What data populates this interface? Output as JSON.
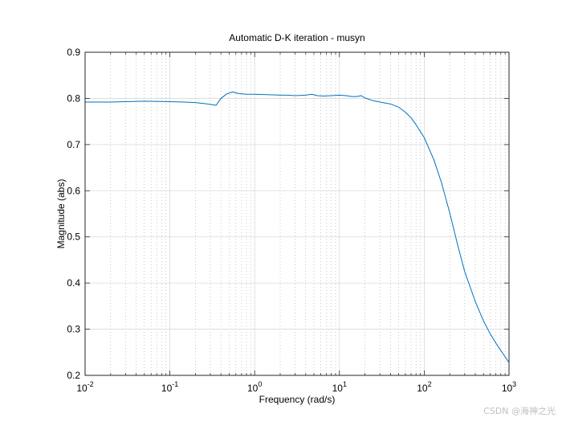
{
  "chart_data": {
    "type": "line",
    "title": "Automatic D-K iteration - musyn",
    "xlabel": "Frequency  (rad/s)",
    "ylabel": "Magnitude (abs)",
    "xscale": "log",
    "xlim": [
      0.01,
      1000
    ],
    "ylim": [
      0.2,
      0.9
    ],
    "grid": true,
    "minor_grid": true,
    "x_ticks": [
      {
        "base": "10",
        "exp": "-2"
      },
      {
        "base": "10",
        "exp": "-1"
      },
      {
        "base": "10",
        "exp": "0"
      },
      {
        "base": "10",
        "exp": "1"
      },
      {
        "base": "10",
        "exp": "2"
      },
      {
        "base": "10",
        "exp": "3"
      }
    ],
    "y_ticks": [
      "0.2",
      "0.3",
      "0.4",
      "0.5",
      "0.6",
      "0.7",
      "0.8",
      "0.9"
    ],
    "line_color": "#0072bd",
    "series": [
      {
        "x": [
          0.01,
          0.02,
          0.03,
          0.05,
          0.1,
          0.15,
          0.2,
          0.25,
          0.3,
          0.35,
          0.4,
          0.47,
          0.55,
          0.63,
          0.8,
          1.0,
          1.5,
          2.0,
          2.5,
          3.0,
          4.0,
          4.7,
          5.5,
          6.5,
          8.0,
          10,
          12,
          14,
          16,
          18,
          20,
          25,
          30,
          40,
          50,
          60,
          70,
          80,
          100,
          130,
          160,
          200,
          250,
          300,
          400,
          500,
          600,
          700,
          800,
          900,
          1000
        ],
        "y": [
          0.792,
          0.792,
          0.793,
          0.794,
          0.793,
          0.792,
          0.791,
          0.789,
          0.787,
          0.785,
          0.8,
          0.81,
          0.814,
          0.811,
          0.809,
          0.809,
          0.808,
          0.807,
          0.807,
          0.806,
          0.807,
          0.809,
          0.806,
          0.805,
          0.806,
          0.807,
          0.806,
          0.804,
          0.804,
          0.806,
          0.801,
          0.795,
          0.792,
          0.788,
          0.781,
          0.77,
          0.758,
          0.743,
          0.715,
          0.667,
          0.617,
          0.552,
          0.48,
          0.425,
          0.36,
          0.318,
          0.29,
          0.27,
          0.254,
          0.24,
          0.228
        ]
      }
    ]
  },
  "watermark": "CSDN @海神之光"
}
